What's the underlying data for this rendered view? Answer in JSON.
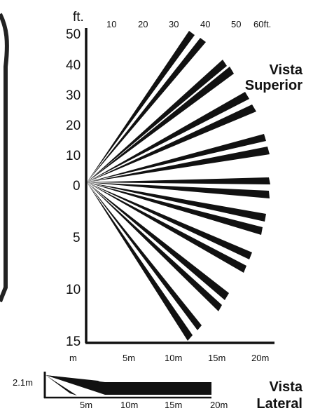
{
  "top_view": {
    "title_line1": "Vista",
    "title_line2": "Superior",
    "unit_ft": "ft.",
    "unit_m": "m",
    "top_ticks": [
      "10",
      "20",
      "30",
      "40",
      "50",
      "60ft."
    ],
    "left_ticks_upper": [
      "50",
      "40",
      "30",
      "20",
      "10",
      "0"
    ],
    "left_ticks_lower": [
      "5",
      "10",
      "15"
    ],
    "bottom_ticks": [
      "5m",
      "10m",
      "15m",
      "20m"
    ]
  },
  "side_view": {
    "title_line1": "Vista",
    "title_line2": "Lateral",
    "height_label": "2.1m",
    "bottom_ticks": [
      "5m",
      "10m",
      "15m",
      "20m"
    ]
  },
  "colors": {
    "beam": "#111111",
    "background": "#ffffff",
    "device_outline": "#222222"
  }
}
